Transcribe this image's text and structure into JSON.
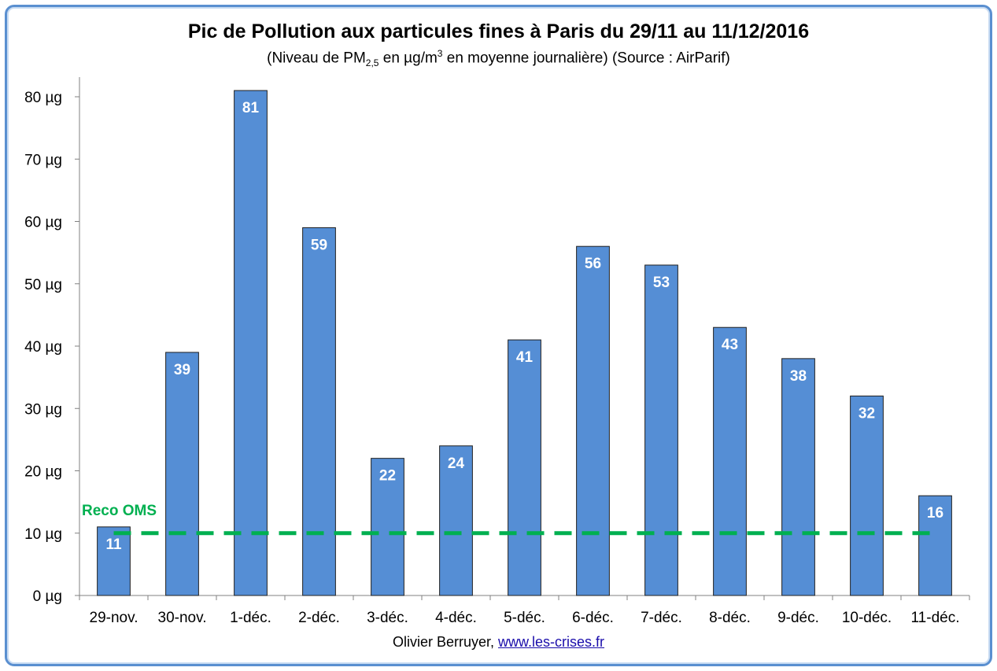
{
  "chart_data": {
    "type": "bar",
    "title": "Pic de Pollution aux particules fines à Paris du 29/11 au 11/12/2016",
    "subtitle": {
      "prefix": "(Niveau de PM",
      "sub": "2,5",
      "middle": " en µg/m",
      "sup": "3",
      "suffix": " en moyenne journalière) (Source : AirParif)"
    },
    "categories": [
      "29-nov.",
      "30-nov.",
      "1-déc.",
      "2-déc.",
      "3-déc.",
      "4-déc.",
      "5-déc.",
      "6-déc.",
      "7-déc.",
      "8-déc.",
      "9-déc.",
      "10-déc.",
      "11-déc."
    ],
    "values": [
      11,
      39,
      81,
      59,
      22,
      24,
      41,
      56,
      53,
      43,
      38,
      32,
      16
    ],
    "data_labels": [
      "11",
      "39",
      "81",
      "59",
      "22",
      "24",
      "41",
      "56",
      "53",
      "43",
      "38",
      "32",
      "16"
    ],
    "y_ticks": [
      "0 µg",
      "10 µg",
      "20 µg",
      "30 µg",
      "40 µg",
      "50 µg",
      "60 µg",
      "70 µg",
      "80 µg"
    ],
    "ylim": [
      0,
      80
    ],
    "grid": false,
    "bar_color": "#558ed5",
    "reference_line": {
      "label": "Reco OMS",
      "value": 10,
      "color": "#00b050",
      "style": "dashed"
    }
  },
  "footer": {
    "author": "Olivier Berruyer,",
    "link": "www.les-crises.fr"
  }
}
